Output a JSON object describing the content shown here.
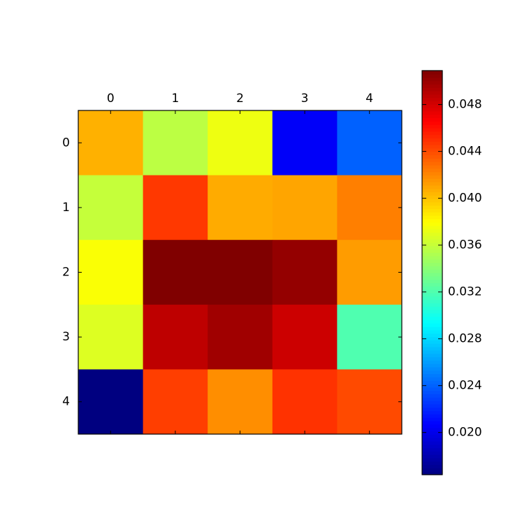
{
  "chart_data": {
    "type": "heatmap",
    "colormap": "jet",
    "x": [
      0,
      1,
      2,
      3,
      4
    ],
    "y": [
      0,
      1,
      2,
      3,
      4
    ],
    "values": [
      [
        0.0406,
        0.0357,
        0.0374,
        0.0205,
        0.024
      ],
      [
        0.036,
        0.0447,
        0.0408,
        0.041,
        0.0423
      ],
      [
        0.0378,
        0.0509,
        0.0509,
        0.0502,
        0.0413
      ],
      [
        0.0368,
        0.0488,
        0.0498,
        0.0483,
        0.032
      ],
      [
        0.0164,
        0.0445,
        0.0418,
        0.0449,
        0.0441
      ]
    ],
    "zlim": [
      0.0164,
      0.0509
    ],
    "zticks": [
      {
        "value": 0.02,
        "label": "0.020"
      },
      0.024,
      0.028,
      0.032,
      0.036,
      {
        "value": 0.04,
        "label": "0.040"
      },
      0.044,
      0.048
    ]
  }
}
